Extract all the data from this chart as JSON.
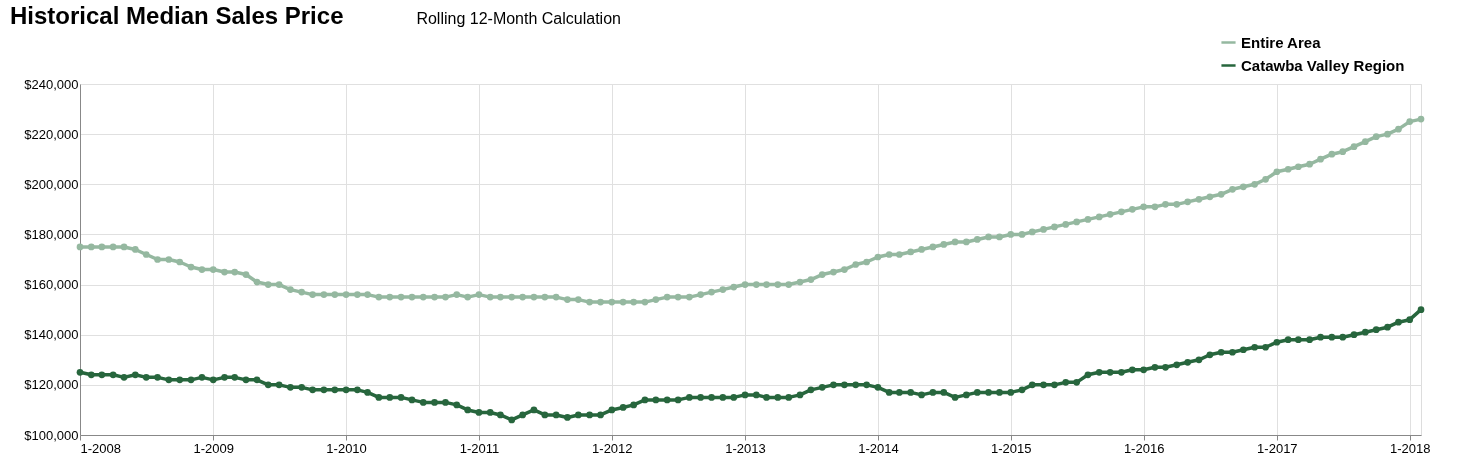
{
  "chart_data": {
    "type": "line",
    "title": "Historical Median Sales Price",
    "subtitle": "Rolling 12-Month Calculation",
    "x": [
      "2008-01",
      "2008-02",
      "2008-03",
      "2008-04",
      "2008-05",
      "2008-06",
      "2008-07",
      "2008-08",
      "2008-09",
      "2008-10",
      "2008-11",
      "2008-12",
      "2009-01",
      "2009-02",
      "2009-03",
      "2009-04",
      "2009-05",
      "2009-06",
      "2009-07",
      "2009-08",
      "2009-09",
      "2009-10",
      "2009-11",
      "2009-12",
      "2010-01",
      "2010-02",
      "2010-03",
      "2010-04",
      "2010-05",
      "2010-06",
      "2010-07",
      "2010-08",
      "2010-09",
      "2010-10",
      "2010-11",
      "2010-12",
      "2011-01",
      "2011-02",
      "2011-03",
      "2011-04",
      "2011-05",
      "2011-06",
      "2011-07",
      "2011-08",
      "2011-09",
      "2011-10",
      "2011-11",
      "2011-12",
      "2012-01",
      "2012-02",
      "2012-03",
      "2012-04",
      "2012-05",
      "2012-06",
      "2012-07",
      "2012-08",
      "2012-09",
      "2012-10",
      "2012-11",
      "2012-12",
      "2013-01",
      "2013-02",
      "2013-03",
      "2013-04",
      "2013-05",
      "2013-06",
      "2013-07",
      "2013-08",
      "2013-09",
      "2013-10",
      "2013-11",
      "2013-12",
      "2014-01",
      "2014-02",
      "2014-03",
      "2014-04",
      "2014-05",
      "2014-06",
      "2014-07",
      "2014-08",
      "2014-09",
      "2014-10",
      "2014-11",
      "2014-12",
      "2015-01",
      "2015-02",
      "2015-03",
      "2015-04",
      "2015-05",
      "2015-06",
      "2015-07",
      "2015-08",
      "2015-09",
      "2015-10",
      "2015-11",
      "2015-12",
      "2016-01",
      "2016-02",
      "2016-03",
      "2016-04",
      "2016-05",
      "2016-06",
      "2016-07",
      "2016-08",
      "2016-09",
      "2016-10",
      "2016-11",
      "2016-12",
      "2017-01",
      "2017-02",
      "2017-03",
      "2017-04",
      "2017-05",
      "2017-06",
      "2017-07",
      "2017-08",
      "2017-09",
      "2017-10",
      "2017-11",
      "2017-12",
      "2018-01",
      "2018-02"
    ],
    "series": [
      {
        "name": "Entire Area",
        "color": "#95b8a0",
        "values": [
          175000,
          175000,
          175000,
          175000,
          175000,
          174000,
          172000,
          170000,
          170000,
          169000,
          167000,
          166000,
          166000,
          165000,
          165000,
          164000,
          161000,
          160000,
          160000,
          158000,
          157000,
          156000,
          156000,
          156000,
          156000,
          156000,
          156000,
          155000,
          155000,
          155000,
          155000,
          155000,
          155000,
          155000,
          156000,
          155000,
          156000,
          155000,
          155000,
          155000,
          155000,
          155000,
          155000,
          155000,
          154000,
          154000,
          153000,
          153000,
          153000,
          153000,
          153000,
          153000,
          154000,
          155000,
          155000,
          155000,
          156000,
          157000,
          158000,
          159000,
          160000,
          160000,
          160000,
          160000,
          160000,
          161000,
          162000,
          164000,
          165000,
          166000,
          168000,
          169000,
          171000,
          172000,
          172000,
          173000,
          174000,
          175000,
          176000,
          177000,
          177000,
          178000,
          179000,
          179000,
          180000,
          180000,
          181000,
          182000,
          183000,
          184000,
          185000,
          186000,
          187000,
          188000,
          189000,
          190000,
          191000,
          191000,
          192000,
          192000,
          193000,
          194000,
          195000,
          196000,
          198000,
          199000,
          200000,
          202000,
          205000,
          206000,
          207000,
          208000,
          210000,
          212000,
          213000,
          215000,
          217000,
          219000,
          220000,
          222000,
          225000,
          226000
        ]
      },
      {
        "name": "Catawba Valley Region",
        "color": "#27663d",
        "values": [
          125000,
          124000,
          124000,
          124000,
          123000,
          124000,
          123000,
          123000,
          122000,
          122000,
          122000,
          123000,
          122000,
          123000,
          123000,
          122000,
          122000,
          120000,
          120000,
          119000,
          119000,
          118000,
          118000,
          118000,
          118000,
          118000,
          117000,
          115000,
          115000,
          115000,
          114000,
          113000,
          113000,
          113000,
          112000,
          110000,
          109000,
          109000,
          108000,
          106000,
          108000,
          110000,
          108000,
          108000,
          107000,
          108000,
          108000,
          108000,
          110000,
          111000,
          112000,
          114000,
          114000,
          114000,
          114000,
          115000,
          115000,
          115000,
          115000,
          115000,
          116000,
          116000,
          115000,
          115000,
          115000,
          116000,
          118000,
          119000,
          120000,
          120000,
          120000,
          120000,
          119000,
          117000,
          117000,
          117000,
          116000,
          117000,
          117000,
          115000,
          116000,
          117000,
          117000,
          117000,
          117000,
          118000,
          120000,
          120000,
          120000,
          121000,
          121000,
          124000,
          125000,
          125000,
          125000,
          126000,
          126000,
          127000,
          127000,
          128000,
          129000,
          130000,
          132000,
          133000,
          133000,
          134000,
          135000,
          135000,
          137000,
          138000,
          138000,
          138000,
          139000,
          139000,
          139000,
          140000,
          141000,
          142000,
          143000,
          145000,
          146000,
          150000
        ]
      }
    ],
    "xlim": [
      "2008-01",
      "2018-02"
    ],
    "xticks": [
      {
        "value": "2008-01",
        "label": "1-2008"
      },
      {
        "value": "2009-01",
        "label": "1-2009"
      },
      {
        "value": "2010-01",
        "label": "1-2010"
      },
      {
        "value": "2011-01",
        "label": "1-2011"
      },
      {
        "value": "2012-01",
        "label": "1-2012"
      },
      {
        "value": "2013-01",
        "label": "1-2013"
      },
      {
        "value": "2014-01",
        "label": "1-2014"
      },
      {
        "value": "2015-01",
        "label": "1-2015"
      },
      {
        "value": "2016-01",
        "label": "1-2016"
      },
      {
        "value": "2017-01",
        "label": "1-2017"
      },
      {
        "value": "2018-01",
        "label": "1-2018"
      }
    ],
    "ylim": [
      100000,
      240000
    ],
    "yticks": [
      {
        "value": 100000,
        "label": "$100,000"
      },
      {
        "value": 120000,
        "label": "$120,000"
      },
      {
        "value": 140000,
        "label": "$140,000"
      },
      {
        "value": 160000,
        "label": "$160,000"
      },
      {
        "value": 180000,
        "label": "$180,000"
      },
      {
        "value": 200000,
        "label": "$200,000"
      },
      {
        "value": 220000,
        "label": "$220,000"
      },
      {
        "value": 240000,
        "label": "$240,000"
      }
    ],
    "grid": true,
    "legend": "top right",
    "marker": "circle",
    "line_style": "solid"
  }
}
